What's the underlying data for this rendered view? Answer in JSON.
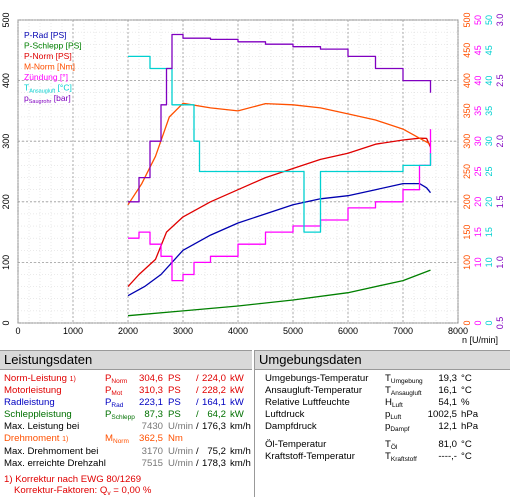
{
  "chart_data": {
    "type": "line",
    "xlabel": "n [U/min]",
    "xlim": [
      0,
      8000
    ],
    "xticks": [
      0,
      1000,
      2000,
      3000,
      4000,
      5000,
      6000,
      7000,
      8000
    ],
    "left_axis": {
      "range": [
        0,
        500
      ],
      "ticks": [
        0,
        100,
        200,
        300,
        400,
        500
      ],
      "color": "#000000"
    },
    "right_axes": [
      {
        "range": [
          0,
          500
        ],
        "ticks": [
          0,
          100,
          150,
          200,
          250,
          300,
          350,
          400,
          450,
          500
        ],
        "color": "#ff5000"
      },
      {
        "range": [
          0,
          50
        ],
        "ticks": [
          0,
          10,
          15,
          20,
          25,
          30,
          35,
          40,
          45,
          50
        ],
        "color": "#ff00ff"
      },
      {
        "range": [
          0,
          50
        ],
        "ticks": [
          0,
          10,
          15,
          20,
          25,
          30,
          35,
          40,
          45,
          50
        ],
        "color": "#00d0d0"
      },
      {
        "range": [
          0.5,
          3.0
        ],
        "ticks": [
          0.5,
          1.0,
          1.5,
          2.0,
          2.5,
          3.0
        ],
        "color": "#8000c0"
      }
    ],
    "legend": [
      {
        "name": "P-Rad [PS]",
        "color": "#0000b0"
      },
      {
        "name": "P-Schlepp [PS]",
        "color": "#008000"
      },
      {
        "name": "P-Norm [PS]",
        "color": "#e00000"
      },
      {
        "name": "M-Norm [Nm]",
        "color": "#ff5000"
      },
      {
        "name": "Zündung [°]",
        "color": "#ff00ff"
      },
      {
        "name": "T_Ansaugluft [°C]",
        "color": "#00d0d0"
      },
      {
        "name": "p_Saugrohr [bar]",
        "color": "#8000c0"
      }
    ],
    "series": [
      {
        "name": "P-Norm [PS]",
        "color": "#e00000",
        "x": [
          2000,
          2200,
          2500,
          2700,
          3000,
          3500,
          4000,
          4500,
          5000,
          5500,
          6000,
          6500,
          7000,
          7300,
          7430,
          7500
        ],
        "y": [
          60,
          80,
          105,
          150,
          175,
          200,
          220,
          240,
          255,
          270,
          280,
          295,
          302,
          305,
          304.6,
          290
        ]
      },
      {
        "name": "P-Rad [PS]",
        "color": "#0000b0",
        "x": [
          2000,
          2300,
          2600,
          2800,
          3000,
          3500,
          4000,
          4500,
          5000,
          5500,
          6000,
          6500,
          7000,
          7300,
          7430,
          7500
        ],
        "y": [
          45,
          60,
          80,
          100,
          120,
          145,
          165,
          180,
          195,
          205,
          210,
          220,
          230,
          230,
          223.1,
          215
        ]
      },
      {
        "name": "P-Schlepp [PS]",
        "color": "#008000",
        "x": [
          2000,
          3000,
          4000,
          5000,
          6000,
          7000,
          7500
        ],
        "y": [
          12,
          20,
          28,
          38,
          50,
          70,
          87.3
        ]
      },
      {
        "name": "M-Norm [Nm]",
        "color": "#ff5000",
        "x": [
          2000,
          2250,
          2500,
          2750,
          3000,
          3500,
          4000,
          4500,
          5000,
          5500,
          6000,
          6500,
          7000,
          7300,
          7500
        ],
        "y": [
          195,
          230,
          275,
          340,
          362.5,
          355,
          350,
          362,
          360,
          355,
          345,
          335,
          320,
          305,
          295
        ]
      },
      {
        "name": "Zündung [°]",
        "color": "#ff00ff",
        "x": [
          2000,
          2200,
          2400,
          2600,
          2800,
          3000,
          3200,
          3500,
          4000,
          4500,
          5000,
          5500,
          6000,
          6500,
          7000,
          7300,
          7500
        ],
        "y": [
          14,
          15,
          13,
          11,
          7,
          8,
          10,
          11,
          13,
          15,
          16,
          17,
          19,
          20,
          22,
          26,
          32
        ]
      },
      {
        "name": "T_Ansaugluft [°C]",
        "color": "#00d0d0",
        "x": [
          2000,
          2350,
          2400,
          2600,
          2800,
          3000,
          3200,
          3300,
          3500,
          4000,
          4500,
          5000,
          5200,
          5500,
          6000,
          6500,
          7000,
          7500
        ],
        "y": [
          44,
          44,
          42,
          42,
          36,
          36,
          30,
          25,
          25,
          25,
          25,
          25,
          15,
          25,
          25,
          25,
          26,
          28
        ]
      },
      {
        "name": "p_Saugrohr [bar]",
        "color": "#8000c0",
        "x": [
          2000,
          2200,
          2400,
          2600,
          2700,
          2800,
          3000,
          3500,
          4000,
          4500,
          5000,
          5500,
          6000,
          6500,
          7000,
          7500
        ],
        "y": [
          1.5,
          1.7,
          2.0,
          2.3,
          2.6,
          2.88,
          2.85,
          2.84,
          2.82,
          2.8,
          2.78,
          2.76,
          2.7,
          2.6,
          2.5,
          2.4
        ]
      }
    ]
  },
  "leistung": {
    "title": "Leistungsdaten",
    "rows": [
      {
        "label": "Norm-Leistung",
        "note": "1)",
        "sym": "P",
        "sub": "Norm",
        "v1": "304,6",
        "u1": "PS",
        "v2": "224,0",
        "u2": "kW"
      },
      {
        "label": "Motorleistung",
        "note": "",
        "sym": "P",
        "sub": "Mot",
        "v1": "310,3",
        "u1": "PS",
        "v2": "228,2",
        "u2": "kW"
      },
      {
        "label": "Radleistung",
        "note": "",
        "sym": "P",
        "sub": "Rad",
        "v1": "223,1",
        "u1": "PS",
        "v2": "164,1",
        "u2": "kW"
      },
      {
        "label": "Schleppleistung",
        "note": "",
        "sym": "P",
        "sub": "Schlepp",
        "v1": "87,3",
        "u1": "PS",
        "v2": "64,2",
        "u2": "kW"
      },
      {
        "label": "Max. Leistung bei",
        "note": "",
        "sym": "",
        "sub": "",
        "v1": "7430",
        "u1": "U/min",
        "v2": "176,3",
        "u2": "km/h"
      }
    ],
    "dreh_rows": [
      {
        "label": "Drehmoment",
        "note": "1)",
        "sym": "M",
        "sub": "Norm",
        "v1": "362,5",
        "u1": "Nm",
        "v2": "",
        "u2": ""
      },
      {
        "label": "Max. Drehmoment bei",
        "note": "",
        "sym": "",
        "sub": "",
        "v1": "3170",
        "u1": "U/min",
        "v2": "75,2",
        "u2": "km/h"
      },
      {
        "label": "Max. erreichte Drehzahl",
        "note": "",
        "sym": "",
        "sub": "",
        "v1": "7515",
        "u1": "U/min",
        "v2": "178,3",
        "u2": "km/h"
      }
    ],
    "footnote1": "1) Korrektur nach EWG 80/1269",
    "footnote2_label": "Korrektur-Faktoren: Q",
    "footnote2_sub": "v",
    "footnote2_value": "=   0,00 %"
  },
  "umgebung": {
    "title": "Umgebungsdaten",
    "rows": [
      {
        "label": "Umgebungs-Temperatur",
        "sym": "T",
        "sub": "Umgebung",
        "value": "19,3",
        "unit": "°C"
      },
      {
        "label": "Ansaugluft-Temperatur",
        "sym": "T",
        "sub": "Ansaugluft",
        "value": "16,1",
        "unit": "°C"
      },
      {
        "label": "Relative Luftfeuchte",
        "sym": "H",
        "sub": "Luft",
        "value": "54,1",
        "unit": "%"
      },
      {
        "label": "Luftdruck",
        "sym": "p",
        "sub": "Luft",
        "value": "1002,5",
        "unit": "hPa"
      },
      {
        "label": "Dampfdruck",
        "sym": "p",
        "sub": "Dampf",
        "value": "12,1",
        "unit": "hPa"
      },
      {
        "label": "Öl-Temperatur",
        "sym": "T",
        "sub": "Öl",
        "value": "81,0",
        "unit": "°C"
      },
      {
        "label": "Kraftstoff-Temperatur",
        "sym": "T",
        "sub": "Kraftstoff",
        "value": "----,-",
        "unit": "°C"
      }
    ]
  }
}
